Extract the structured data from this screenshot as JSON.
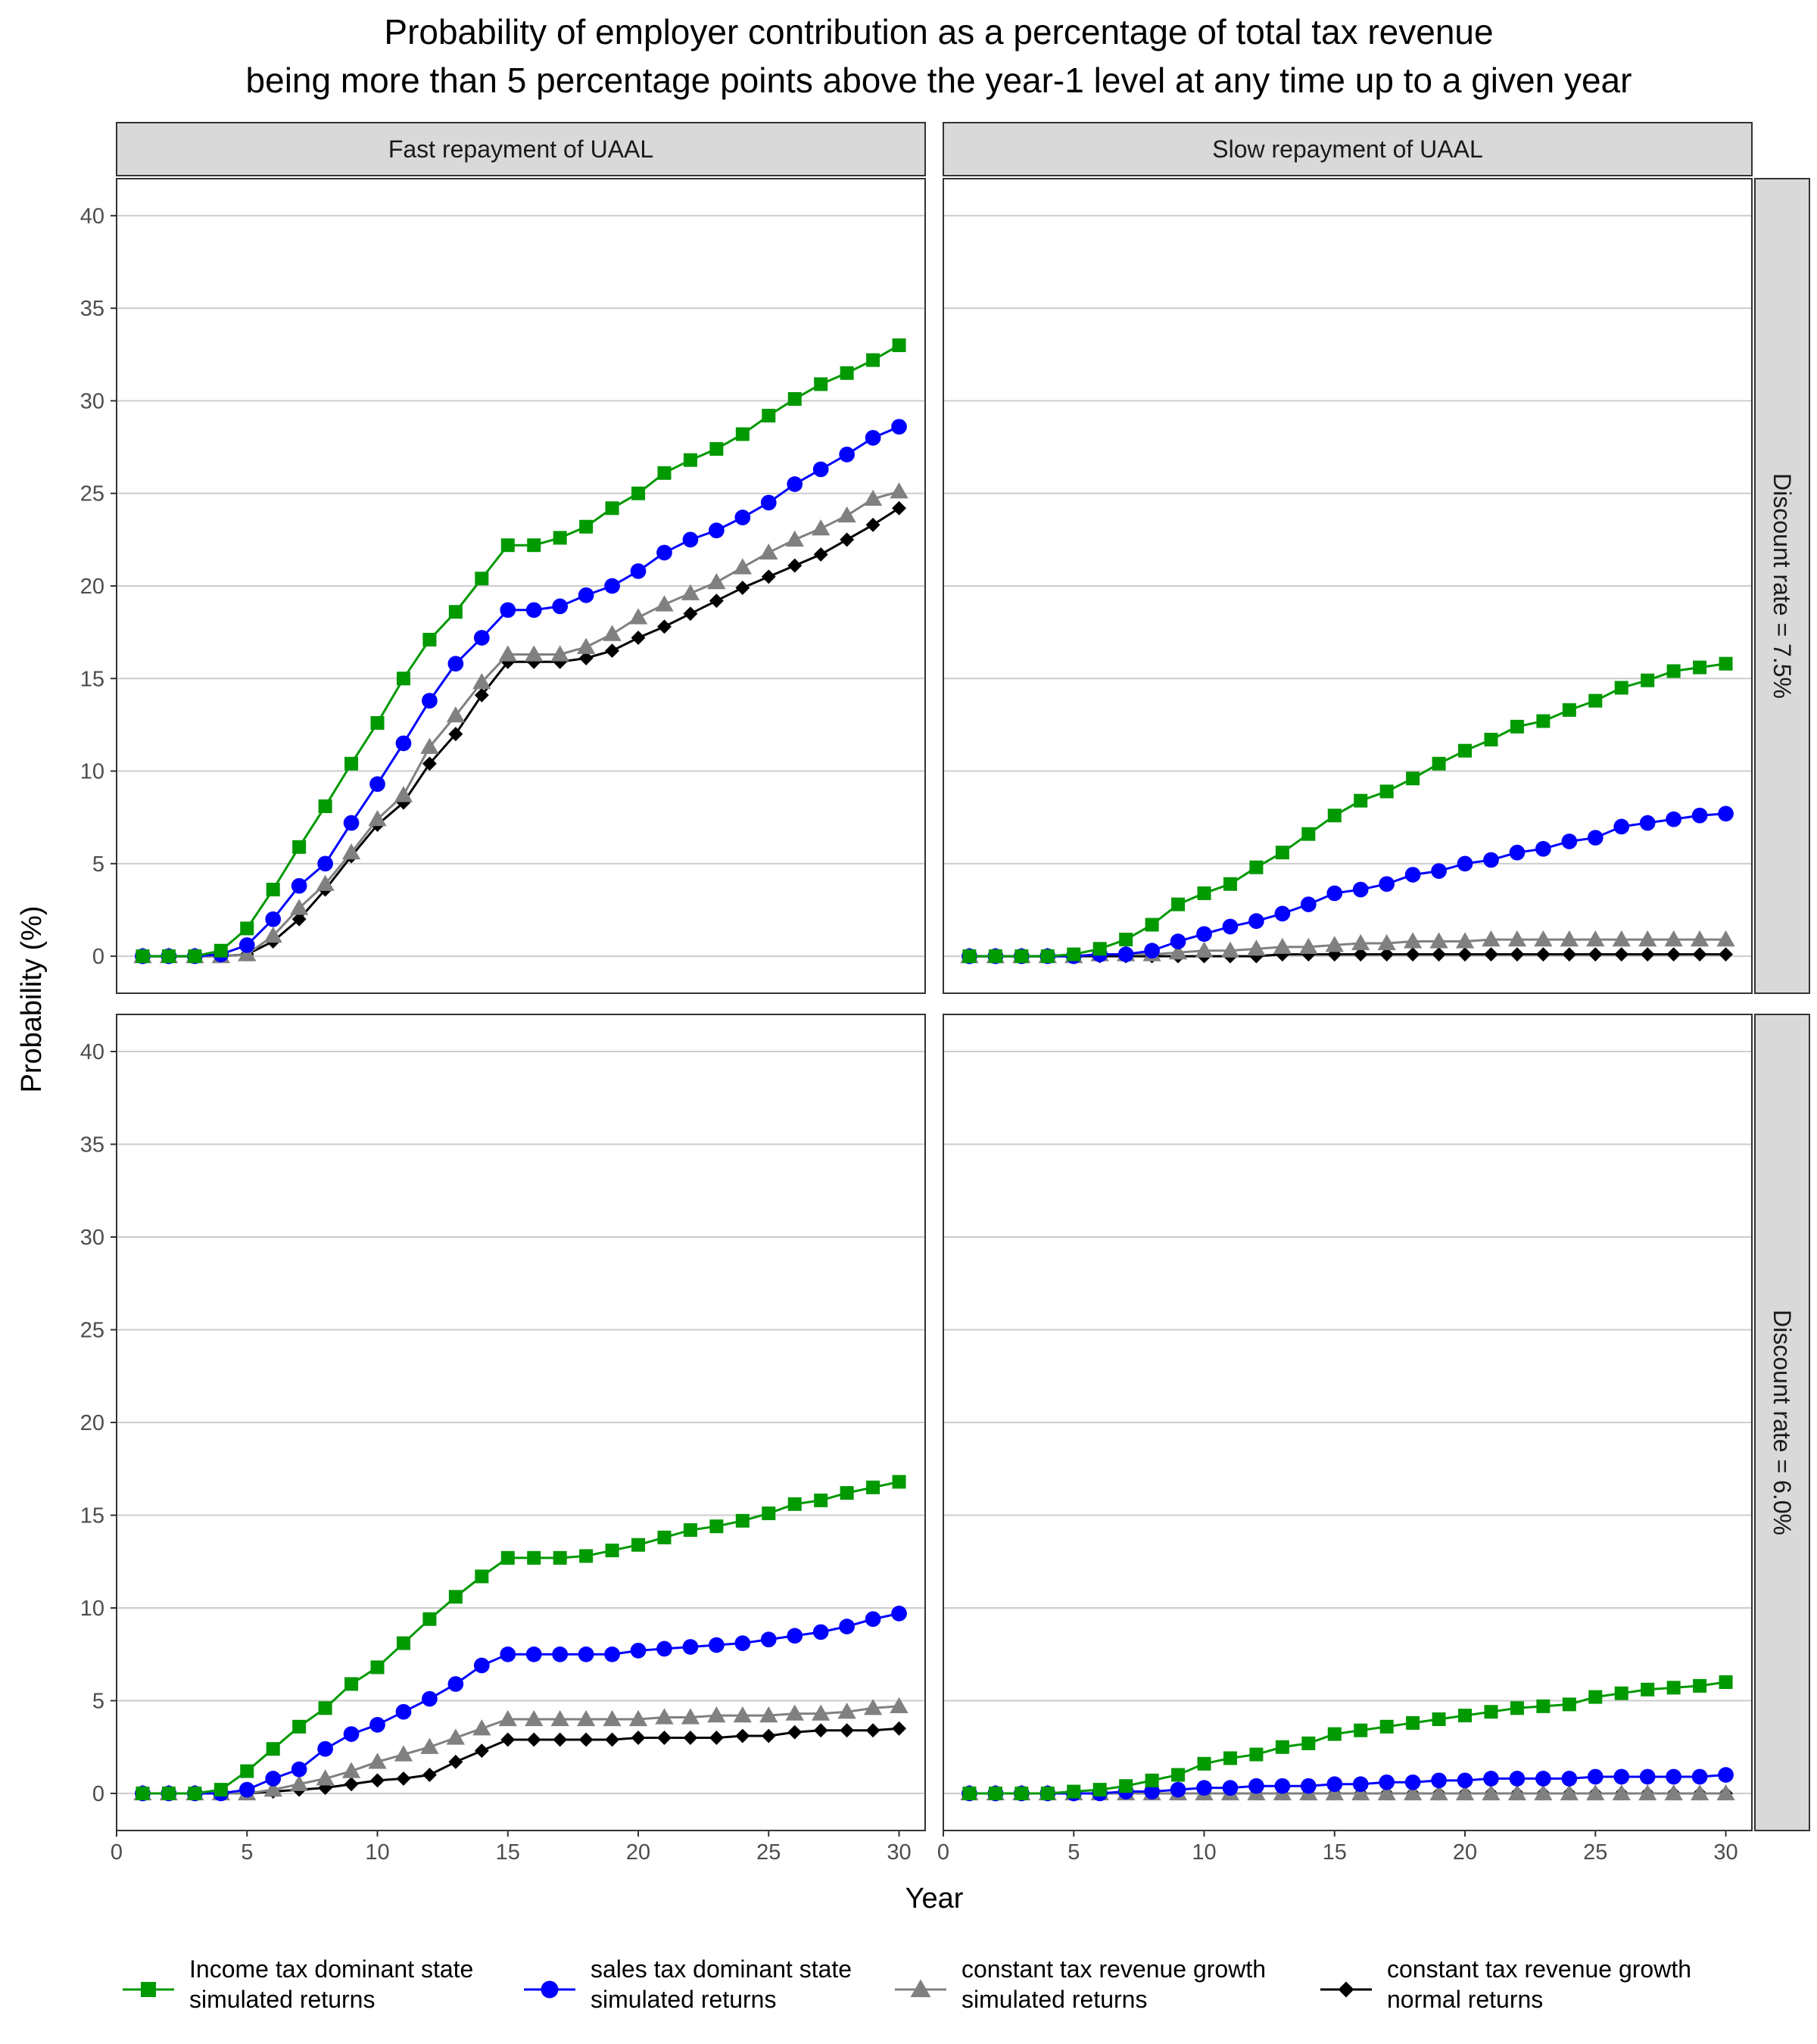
{
  "chart_data": {
    "type": "line",
    "title": "Probability of employer contribution as a percentage of total tax revenue",
    "subtitle": "being more than 5 percentage points above the year-1 level at any time up to a given year",
    "xlabel": "Year",
    "ylabel": "Probability (%)",
    "xlim": [
      0,
      31
    ],
    "ylim": [
      -2,
      42
    ],
    "xticks": [
      0,
      5,
      10,
      15,
      20,
      25,
      30
    ],
    "yticks": [
      0,
      5,
      10,
      15,
      20,
      25,
      30,
      35,
      40
    ],
    "grid": "horizontal",
    "legend_position": "bottom",
    "columns": [
      "Fast repayment of UAAL",
      "Slow repayment of UAAL"
    ],
    "rows": [
      "Discount rate = 7.5%",
      "Discount rate = 6.0%"
    ],
    "series_styles": [
      {
        "key": "income",
        "label_line1": "Income tax dominant state",
        "label_line2": "simulated returns",
        "color": "#009900",
        "marker": "square"
      },
      {
        "key": "sales",
        "label_line1": "sales tax dominant state",
        "label_line2": "simulated returns",
        "color": "#0000ff",
        "marker": "circle"
      },
      {
        "key": "const_sim",
        "label_line1": "constant tax revenue growth",
        "label_line2": "simulated returns",
        "color": "#808080",
        "marker": "triangle"
      },
      {
        "key": "const_norm",
        "label_line1": "constant tax revenue growth",
        "label_line2": "normal returns",
        "color": "#000000",
        "marker": "diamond"
      }
    ],
    "x": [
      1,
      2,
      3,
      4,
      5,
      6,
      7,
      8,
      9,
      10,
      11,
      12,
      13,
      14,
      15,
      16,
      17,
      18,
      19,
      20,
      21,
      22,
      23,
      24,
      25,
      26,
      27,
      28,
      29,
      30
    ],
    "panels": [
      {
        "row": 0,
        "col": 0,
        "series": {
          "income": [
            0,
            0,
            0,
            0.3,
            1.5,
            3.6,
            5.9,
            8.1,
            10.4,
            12.6,
            15.0,
            17.1,
            18.6,
            20.4,
            22.2,
            22.2,
            22.6,
            23.2,
            24.2,
            25.0,
            26.1,
            26.8,
            27.4,
            28.2,
            29.2,
            30.1,
            30.9,
            31.5,
            32.2,
            33.0
          ],
          "sales": [
            0,
            0,
            0,
            0.1,
            0.6,
            2.0,
            3.8,
            5.0,
            7.2,
            9.3,
            11.5,
            13.8,
            15.8,
            17.2,
            18.7,
            18.7,
            18.9,
            19.5,
            20.0,
            20.8,
            21.8,
            22.5,
            23.0,
            23.7,
            24.5,
            25.5,
            26.3,
            27.1,
            28.0,
            28.6
          ],
          "const_sim": [
            0,
            0,
            0,
            0,
            0.1,
            1.1,
            2.6,
            3.9,
            5.6,
            7.4,
            8.7,
            11.3,
            13.0,
            14.8,
            16.3,
            16.3,
            16.3,
            16.7,
            17.4,
            18.3,
            19.0,
            19.6,
            20.2,
            21.0,
            21.8,
            22.5,
            23.1,
            23.8,
            24.7,
            25.1
          ],
          "const_norm": [
            0,
            0,
            0,
            0,
            0.1,
            0.8,
            2.0,
            3.6,
            5.4,
            7.1,
            8.3,
            10.4,
            12.0,
            14.1,
            15.9,
            15.9,
            15.9,
            16.1,
            16.5,
            17.2,
            17.8,
            18.5,
            19.2,
            19.9,
            20.5,
            21.1,
            21.7,
            22.5,
            23.3,
            24.2
          ]
        }
      },
      {
        "row": 0,
        "col": 1,
        "series": {
          "income": [
            0,
            0,
            0,
            0,
            0.1,
            0.4,
            0.9,
            1.7,
            2.8,
            3.4,
            3.9,
            4.8,
            5.6,
            6.6,
            7.6,
            8.4,
            8.9,
            9.6,
            10.4,
            11.1,
            11.7,
            12.4,
            12.7,
            13.3,
            13.8,
            14.5,
            14.9,
            15.4,
            15.6,
            15.8
          ],
          "sales": [
            0,
            0,
            0,
            0,
            0,
            0.1,
            0.1,
            0.3,
            0.8,
            1.2,
            1.6,
            1.9,
            2.3,
            2.8,
            3.4,
            3.6,
            3.9,
            4.4,
            4.6,
            5.0,
            5.2,
            5.6,
            5.8,
            6.2,
            6.4,
            7.0,
            7.2,
            7.4,
            7.6,
            7.7
          ],
          "const_sim": [
            0,
            0,
            0,
            0,
            0,
            0.1,
            0.1,
            0.1,
            0.2,
            0.3,
            0.3,
            0.4,
            0.5,
            0.5,
            0.6,
            0.7,
            0.7,
            0.8,
            0.8,
            0.8,
            0.9,
            0.9,
            0.9,
            0.9,
            0.9,
            0.9,
            0.9,
            0.9,
            0.9,
            0.9
          ],
          "const_norm": [
            0,
            0,
            0,
            0,
            0,
            0,
            0,
            0,
            0,
            0,
            0,
            0,
            0.1,
            0.1,
            0.1,
            0.1,
            0.1,
            0.1,
            0.1,
            0.1,
            0.1,
            0.1,
            0.1,
            0.1,
            0.1,
            0.1,
            0.1,
            0.1,
            0.1,
            0.1
          ]
        }
      },
      {
        "row": 1,
        "col": 0,
        "series": {
          "income": [
            0,
            0,
            0,
            0.2,
            1.2,
            2.4,
            3.6,
            4.6,
            5.9,
            6.8,
            8.1,
            9.4,
            10.6,
            11.7,
            12.7,
            12.7,
            12.7,
            12.8,
            13.1,
            13.4,
            13.8,
            14.2,
            14.4,
            14.7,
            15.1,
            15.6,
            15.8,
            16.2,
            16.5,
            16.8
          ],
          "sales": [
            0,
            0,
            0,
            0,
            0.2,
            0.8,
            1.3,
            2.4,
            3.2,
            3.7,
            4.4,
            5.1,
            5.9,
            6.9,
            7.5,
            7.5,
            7.5,
            7.5,
            7.5,
            7.7,
            7.8,
            7.9,
            8.0,
            8.1,
            8.3,
            8.5,
            8.7,
            9.0,
            9.4,
            9.7
          ],
          "const_sim": [
            0,
            0,
            0,
            0,
            0,
            0.2,
            0.5,
            0.8,
            1.2,
            1.7,
            2.1,
            2.5,
            3.0,
            3.5,
            4.0,
            4.0,
            4.0,
            4.0,
            4.0,
            4.0,
            4.1,
            4.1,
            4.2,
            4.2,
            4.2,
            4.3,
            4.3,
            4.4,
            4.6,
            4.7
          ],
          "const_norm": [
            0,
            0,
            0,
            0,
            0,
            0.1,
            0.2,
            0.3,
            0.5,
            0.7,
            0.8,
            1.0,
            1.7,
            2.3,
            2.9,
            2.9,
            2.9,
            2.9,
            2.9,
            3.0,
            3.0,
            3.0,
            3.0,
            3.1,
            3.1,
            3.3,
            3.4,
            3.4,
            3.4,
            3.5
          ]
        }
      },
      {
        "row": 1,
        "col": 1,
        "series": {
          "income": [
            0,
            0,
            0,
            0,
            0.1,
            0.2,
            0.4,
            0.7,
            1.0,
            1.6,
            1.9,
            2.1,
            2.5,
            2.7,
            3.2,
            3.4,
            3.6,
            3.8,
            4.0,
            4.2,
            4.4,
            4.6,
            4.7,
            4.8,
            5.2,
            5.4,
            5.6,
            5.7,
            5.8,
            6.0
          ],
          "sales": [
            0,
            0,
            0,
            0,
            0,
            0,
            0.1,
            0.1,
            0.2,
            0.3,
            0.3,
            0.4,
            0.4,
            0.4,
            0.5,
            0.5,
            0.6,
            0.6,
            0.7,
            0.7,
            0.8,
            0.8,
            0.8,
            0.8,
            0.9,
            0.9,
            0.9,
            0.9,
            0.9,
            1.0
          ],
          "const_sim": [
            0,
            0,
            0,
            0,
            0,
            0,
            0,
            0,
            0,
            0,
            0,
            0,
            0,
            0,
            0,
            0,
            0,
            0,
            0,
            0,
            0,
            0,
            0,
            0,
            0,
            0,
            0,
            0,
            0,
            0
          ],
          "const_norm": [
            0,
            0,
            0,
            0,
            0,
            0,
            0,
            0,
            0,
            0,
            0,
            0,
            0,
            0,
            0,
            0,
            0,
            0,
            0,
            0,
            0,
            0,
            0,
            0,
            0,
            0,
            0,
            0,
            0,
            0
          ]
        }
      }
    ]
  }
}
